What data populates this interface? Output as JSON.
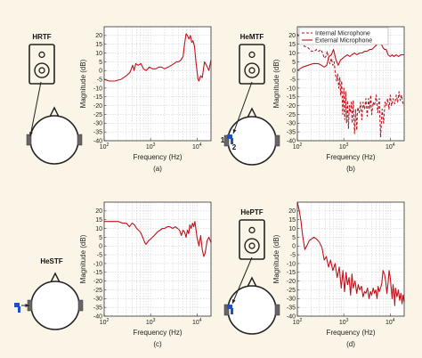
{
  "colors": {
    "background": "#faf5e6",
    "curve": "#c0121c",
    "axes": "#333333",
    "grid": "#c8c8c8",
    "device": "#222222",
    "microphone": "#1f4fd1"
  },
  "illustration_labels": {
    "a": "HRTF",
    "b": "HeMTF",
    "c": "HeSTF",
    "d": "HePTF",
    "mic_1": "1",
    "mic_2": "2"
  },
  "chart_data": [
    {
      "id": "a",
      "type": "line",
      "caption": "(a)",
      "xlabel": "Frequency (Hz)",
      "ylabel": "Magnitude (dB)",
      "xscale": "log",
      "xlim": [
        100,
        20000
      ],
      "ylim": [
        -40,
        25
      ],
      "xticks": [
        "10^2",
        "10^3",
        "10^4"
      ],
      "yticks": [
        -40,
        -35,
        -30,
        -25,
        -20,
        -15,
        -10,
        -5,
        0,
        5,
        10,
        15,
        20
      ],
      "grid": true,
      "series": [
        {
          "style": "solid",
          "x": [
            100,
            130,
            170,
            230,
            300,
            360,
            410,
            440,
            480,
            540,
            620,
            700,
            800,
            950,
            1100,
            1300,
            1500,
            1700,
            2000,
            2400,
            2800,
            3200,
            3600,
            4000,
            4500,
            5000,
            5400,
            5800,
            6200,
            6700,
            7200,
            7700,
            8200,
            8800,
            9500,
            10500,
            11000,
            12000,
            13000,
            14500,
            16000,
            18000,
            20000
          ],
          "y": [
            -5,
            -6,
            -6,
            -5,
            -3,
            -1,
            3,
            0,
            4,
            3,
            4,
            1,
            0,
            2,
            1,
            1,
            2,
            2,
            1,
            2,
            3,
            4,
            5,
            5,
            6,
            8,
            15,
            21,
            20,
            18,
            20,
            16,
            17,
            14,
            5,
            -5,
            -6,
            -3,
            -4,
            5,
            3,
            0,
            6
          ]
        }
      ]
    },
    {
      "id": "b",
      "type": "line",
      "caption": "(b)",
      "xlabel": "Frequency (Hz)",
      "ylabel": "Magnitude (dB)",
      "xscale": "log",
      "xlim": [
        100,
        20000
      ],
      "ylim": [
        -40,
        25
      ],
      "xticks": [
        "10^2",
        "10^3",
        "10^4"
      ],
      "yticks": [
        -40,
        -35,
        -30,
        -25,
        -20,
        -15,
        -10,
        -5,
        0,
        5,
        10,
        15,
        20
      ],
      "grid": true,
      "legend": "top-left",
      "series": [
        {
          "name": "Internal Microphone",
          "style": "dashed",
          "x": [
            100,
            120,
            140,
            170,
            200,
            230,
            260,
            290,
            320,
            350,
            380,
            410,
            440,
            470,
            500,
            540,
            580,
            620,
            660,
            700,
            740,
            780,
            820,
            860,
            900,
            950,
            1000,
            1050,
            1100,
            1150,
            1200,
            1260,
            1320,
            1380,
            1450,
            1520,
            1600,
            1700,
            1800,
            1900,
            2000,
            2150,
            2300,
            2450,
            2600,
            2800,
            3000,
            3200,
            3400,
            3600,
            3800,
            4000,
            4300,
            4600,
            5000,
            5400,
            5800,
            6200,
            6700,
            7200,
            7700,
            8200,
            8800,
            9400,
            10000,
            10700,
            11500,
            12500,
            13500,
            14500,
            15500,
            16500,
            17500,
            18500,
            19500
          ],
          "y": [
            21,
            17,
            14,
            13,
            11,
            11,
            12,
            11,
            12,
            10,
            7,
            8,
            11,
            6,
            4,
            7,
            3,
            5,
            -2,
            -6,
            -2,
            -10,
            -4,
            -14,
            -6,
            -25,
            -10,
            -28,
            -12,
            -30,
            -17,
            -33,
            -20,
            -24,
            -18,
            -30,
            -17,
            -36,
            -22,
            -34,
            -21,
            -24,
            -18,
            -28,
            -18,
            -22,
            -16,
            -26,
            -16,
            -22,
            -14,
            -25,
            -18,
            -20,
            -14,
            -24,
            -16,
            -38,
            -22,
            -30,
            -18,
            -20,
            -16,
            -22,
            -14,
            -20,
            -16,
            -19,
            -14,
            -18,
            -12,
            -17,
            -14,
            -18,
            -20
          ]
        },
        {
          "name": "External Microphone",
          "style": "solid",
          "x": [
            100,
            130,
            170,
            220,
            280,
            330,
            380,
            430,
            480,
            540,
            600,
            680,
            760,
            850,
            950,
            1050,
            1200,
            1350,
            1500,
            1700,
            1900,
            2200,
            2500,
            2800,
            3200,
            3600,
            4000,
            4400,
            4800,
            5200,
            5600,
            6000,
            6500,
            7000,
            7600,
            8200,
            9000,
            10000,
            11000,
            12000,
            13500,
            15000,
            17000,
            20000
          ],
          "y": [
            0,
            2,
            3,
            4,
            4,
            3,
            2,
            3,
            8,
            9,
            12,
            6,
            3,
            6,
            7,
            8,
            9,
            8,
            9,
            10,
            9,
            10,
            10,
            11,
            11,
            12,
            12,
            13,
            14,
            15,
            18,
            16,
            15,
            13,
            12,
            12,
            9,
            8,
            9,
            8,
            9,
            8,
            9,
            9
          ]
        }
      ]
    },
    {
      "id": "c",
      "type": "line",
      "caption": "(c)",
      "xlabel": "Frequency (Hz)",
      "ylabel": "Magnitude (dB)",
      "xscale": "log",
      "xlim": [
        100,
        20000
      ],
      "ylim": [
        -40,
        25
      ],
      "xticks": [
        "10^2",
        "10^3",
        "10^4"
      ],
      "yticks": [
        -40,
        -35,
        -30,
        -25,
        -20,
        -15,
        -10,
        -5,
        0,
        5,
        10,
        15,
        20
      ],
      "grid": true,
      "series": [
        {
          "style": "solid",
          "x": [
            100,
            150,
            200,
            250,
            300,
            350,
            400,
            450,
            500,
            550,
            600,
            650,
            700,
            750,
            800,
            850,
            900,
            1000,
            1100,
            1200,
            1400,
            1600,
            1800,
            2000,
            2300,
            2600,
            3000,
            3400,
            3800,
            4200,
            4600,
            5000,
            5400,
            5800,
            6200,
            6600,
            7000,
            7500,
            8000,
            8500,
            9000,
            10000,
            11000,
            12000,
            13000,
            14000,
            15000,
            16500,
            18000,
            20000
          ],
          "y": [
            14,
            14,
            14,
            13,
            13,
            11,
            13,
            12,
            10,
            9,
            8,
            6,
            4,
            2,
            1,
            2,
            3,
            4,
            5,
            6,
            8,
            9,
            10,
            10,
            11,
            11,
            10,
            11,
            10,
            9,
            6,
            9,
            8,
            5,
            9,
            7,
            12,
            10,
            13,
            11,
            14,
            5,
            0,
            6,
            -2,
            -6,
            -4,
            3,
            5,
            2
          ]
        }
      ]
    },
    {
      "id": "d",
      "type": "line",
      "caption": "(d)",
      "xlabel": "Frequency (Hz)",
      "ylabel": "Magnitude (dB)",
      "xscale": "log",
      "xlim": [
        100,
        20000
      ],
      "ylim": [
        -40,
        25
      ],
      "xticks": [
        "10^2",
        "10^3",
        "10^4"
      ],
      "yticks": [
        -40,
        -35,
        -30,
        -25,
        -20,
        -15,
        -10,
        -5,
        0,
        5,
        10,
        15,
        20
      ],
      "grid": true,
      "series": [
        {
          "style": "solid",
          "x": [
            100,
            110,
            120,
            130,
            145,
            160,
            180,
            200,
            230,
            260,
            300,
            340,
            380,
            420,
            470,
            520,
            580,
            650,
            720,
            800,
            880,
            960,
            1040,
            1120,
            1200,
            1300,
            1400,
            1500,
            1600,
            1750,
            1900,
            2050,
            2200,
            2400,
            2600,
            2800,
            3000,
            3250,
            3500,
            3750,
            4000,
            4300,
            4600,
            4900,
            5200,
            5500,
            5800,
            6200,
            6600,
            7000,
            7500,
            8000,
            8500,
            9000,
            9500,
            10000,
            10500,
            11000,
            11500,
            12000,
            12500,
            13000,
            14000,
            15000,
            16000,
            17000,
            18000,
            19000,
            20000
          ],
          "y": [
            25,
            20,
            14,
            6,
            -2,
            0,
            3,
            4,
            5,
            4,
            2,
            -1,
            -8,
            -6,
            -12,
            -8,
            -14,
            -10,
            -18,
            -12,
            -24,
            -14,
            -26,
            -15,
            -22,
            -18,
            -28,
            -16,
            -24,
            -20,
            -27,
            -22,
            -25,
            -23,
            -29,
            -26,
            -27,
            -24,
            -30,
            -26,
            -28,
            -24,
            -27,
            -25,
            -30,
            -23,
            -26,
            -24,
            -21,
            -14,
            -16,
            -20,
            -27,
            -21,
            -14,
            -18,
            -24,
            -30,
            -22,
            -26,
            -34,
            -24,
            -29,
            -25,
            -31,
            -27,
            -33,
            -28,
            -32
          ]
        }
      ]
    }
  ]
}
